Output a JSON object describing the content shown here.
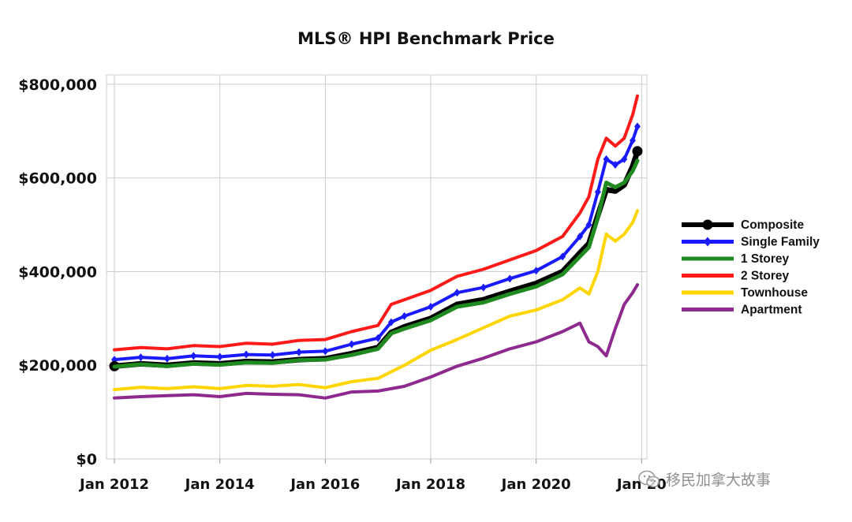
{
  "chart_data": {
    "type": "line",
    "title": "MLS® HPI Benchmark Price",
    "xlabel": "",
    "ylabel": "",
    "ylim": [
      0,
      820000
    ],
    "y_ticks": [
      0,
      200000,
      400000,
      600000,
      800000
    ],
    "y_tick_labels": [
      "$0",
      "$200,000",
      "$400,000",
      "$600,000",
      "$800,000"
    ],
    "x_ticks": [
      2012,
      2014,
      2016,
      2018,
      2020,
      2022
    ],
    "x_tick_labels": [
      "Jan 2012",
      "Jan 2014",
      "Jan 2016",
      "Jan 2018",
      "Jan 2020",
      "Jan 20"
    ],
    "grid": true,
    "legend_position": "right",
    "series": [
      {
        "name": "Composite",
        "color": "#000000",
        "marker": "circle",
        "points": [
          [
            2012.0,
            198000
          ],
          [
            2012.5,
            203000
          ],
          [
            2013.0,
            200000
          ],
          [
            2013.5,
            205000
          ],
          [
            2014.0,
            203000
          ],
          [
            2014.5,
            208000
          ],
          [
            2015.0,
            207000
          ],
          [
            2015.5,
            212000
          ],
          [
            2016.0,
            214000
          ],
          [
            2016.5,
            225000
          ],
          [
            2017.0,
            238000
          ],
          [
            2017.25,
            270000
          ],
          [
            2017.5,
            282000
          ],
          [
            2018.0,
            300000
          ],
          [
            2018.5,
            330000
          ],
          [
            2019.0,
            340000
          ],
          [
            2019.5,
            358000
          ],
          [
            2020.0,
            375000
          ],
          [
            2020.5,
            400000
          ],
          [
            2020.83,
            440000
          ],
          [
            2021.0,
            460000
          ],
          [
            2021.17,
            520000
          ],
          [
            2021.33,
            575000
          ],
          [
            2021.5,
            572000
          ],
          [
            2021.67,
            585000
          ],
          [
            2021.83,
            625000
          ],
          [
            2021.92,
            657000
          ]
        ]
      },
      {
        "name": "Single Family",
        "color": "#1a1aff",
        "marker": "diamond",
        "points": [
          [
            2012.0,
            212000
          ],
          [
            2012.5,
            217000
          ],
          [
            2013.0,
            214000
          ],
          [
            2013.5,
            220000
          ],
          [
            2014.0,
            218000
          ],
          [
            2014.5,
            223000
          ],
          [
            2015.0,
            222000
          ],
          [
            2015.5,
            228000
          ],
          [
            2016.0,
            230000
          ],
          [
            2016.5,
            245000
          ],
          [
            2017.0,
            258000
          ],
          [
            2017.25,
            292000
          ],
          [
            2017.5,
            305000
          ],
          [
            2018.0,
            325000
          ],
          [
            2018.5,
            355000
          ],
          [
            2019.0,
            366000
          ],
          [
            2019.5,
            385000
          ],
          [
            2020.0,
            402000
          ],
          [
            2020.5,
            432000
          ],
          [
            2020.83,
            475000
          ],
          [
            2021.0,
            500000
          ],
          [
            2021.17,
            570000
          ],
          [
            2021.33,
            640000
          ],
          [
            2021.5,
            628000
          ],
          [
            2021.67,
            640000
          ],
          [
            2021.83,
            680000
          ],
          [
            2021.92,
            710000
          ]
        ]
      },
      {
        "name": "1 Storey",
        "color": "#1f8a1f",
        "marker": "none",
        "points": [
          [
            2012.0,
            197000
          ],
          [
            2012.5,
            202000
          ],
          [
            2013.0,
            198000
          ],
          [
            2013.5,
            203000
          ],
          [
            2014.0,
            201000
          ],
          [
            2014.5,
            206000
          ],
          [
            2015.0,
            205000
          ],
          [
            2015.5,
            211000
          ],
          [
            2016.0,
            212000
          ],
          [
            2016.5,
            222000
          ],
          [
            2017.0,
            235000
          ],
          [
            2017.25,
            268000
          ],
          [
            2017.5,
            278000
          ],
          [
            2018.0,
            296000
          ],
          [
            2018.5,
            325000
          ],
          [
            2019.0,
            334000
          ],
          [
            2019.5,
            352000
          ],
          [
            2020.0,
            368000
          ],
          [
            2020.5,
            394000
          ],
          [
            2020.83,
            432000
          ],
          [
            2021.0,
            452000
          ],
          [
            2021.17,
            515000
          ],
          [
            2021.33,
            590000
          ],
          [
            2021.5,
            580000
          ],
          [
            2021.67,
            590000
          ],
          [
            2021.83,
            615000
          ],
          [
            2021.92,
            637000
          ]
        ]
      },
      {
        "name": "2 Storey",
        "color": "#ff1a1a",
        "marker": "none",
        "points": [
          [
            2012.0,
            233000
          ],
          [
            2012.5,
            238000
          ],
          [
            2013.0,
            235000
          ],
          [
            2013.5,
            242000
          ],
          [
            2014.0,
            240000
          ],
          [
            2014.5,
            247000
          ],
          [
            2015.0,
            245000
          ],
          [
            2015.5,
            253000
          ],
          [
            2016.0,
            255000
          ],
          [
            2016.5,
            272000
          ],
          [
            2017.0,
            285000
          ],
          [
            2017.25,
            330000
          ],
          [
            2017.5,
            340000
          ],
          [
            2018.0,
            360000
          ],
          [
            2018.5,
            390000
          ],
          [
            2019.0,
            405000
          ],
          [
            2019.5,
            425000
          ],
          [
            2020.0,
            445000
          ],
          [
            2020.5,
            475000
          ],
          [
            2020.83,
            525000
          ],
          [
            2021.0,
            560000
          ],
          [
            2021.17,
            640000
          ],
          [
            2021.33,
            685000
          ],
          [
            2021.5,
            668000
          ],
          [
            2021.67,
            685000
          ],
          [
            2021.83,
            735000
          ],
          [
            2021.92,
            775000
          ]
        ]
      },
      {
        "name": "Townhouse",
        "color": "#ffd500",
        "marker": "none",
        "points": [
          [
            2012.0,
            148000
          ],
          [
            2012.5,
            153000
          ],
          [
            2013.0,
            150000
          ],
          [
            2013.5,
            154000
          ],
          [
            2014.0,
            150000
          ],
          [
            2014.5,
            157000
          ],
          [
            2015.0,
            155000
          ],
          [
            2015.5,
            159000
          ],
          [
            2016.0,
            152000
          ],
          [
            2016.5,
            165000
          ],
          [
            2017.0,
            172000
          ],
          [
            2017.5,
            200000
          ],
          [
            2018.0,
            232000
          ],
          [
            2018.5,
            255000
          ],
          [
            2019.0,
            280000
          ],
          [
            2019.5,
            305000
          ],
          [
            2020.0,
            318000
          ],
          [
            2020.5,
            340000
          ],
          [
            2020.83,
            365000
          ],
          [
            2021.0,
            352000
          ],
          [
            2021.17,
            400000
          ],
          [
            2021.33,
            480000
          ],
          [
            2021.5,
            465000
          ],
          [
            2021.67,
            480000
          ],
          [
            2021.83,
            505000
          ],
          [
            2021.92,
            530000
          ]
        ]
      },
      {
        "name": "Apartment",
        "color": "#8e2a8e",
        "marker": "none",
        "points": [
          [
            2012.0,
            130000
          ],
          [
            2012.5,
            133000
          ],
          [
            2013.0,
            135000
          ],
          [
            2013.5,
            137000
          ],
          [
            2014.0,
            133000
          ],
          [
            2014.5,
            140000
          ],
          [
            2015.0,
            138000
          ],
          [
            2015.5,
            137000
          ],
          [
            2016.0,
            130000
          ],
          [
            2016.5,
            143000
          ],
          [
            2017.0,
            145000
          ],
          [
            2017.5,
            155000
          ],
          [
            2018.0,
            175000
          ],
          [
            2018.5,
            198000
          ],
          [
            2019.0,
            215000
          ],
          [
            2019.5,
            235000
          ],
          [
            2020.0,
            250000
          ],
          [
            2020.5,
            272000
          ],
          [
            2020.83,
            290000
          ],
          [
            2021.0,
            250000
          ],
          [
            2021.17,
            240000
          ],
          [
            2021.33,
            220000
          ],
          [
            2021.5,
            278000
          ],
          [
            2021.67,
            330000
          ],
          [
            2021.83,
            355000
          ],
          [
            2021.92,
            372000
          ]
        ]
      }
    ]
  },
  "watermark": {
    "text": "移民加拿大故事",
    "icon": "wechat-icon"
  }
}
